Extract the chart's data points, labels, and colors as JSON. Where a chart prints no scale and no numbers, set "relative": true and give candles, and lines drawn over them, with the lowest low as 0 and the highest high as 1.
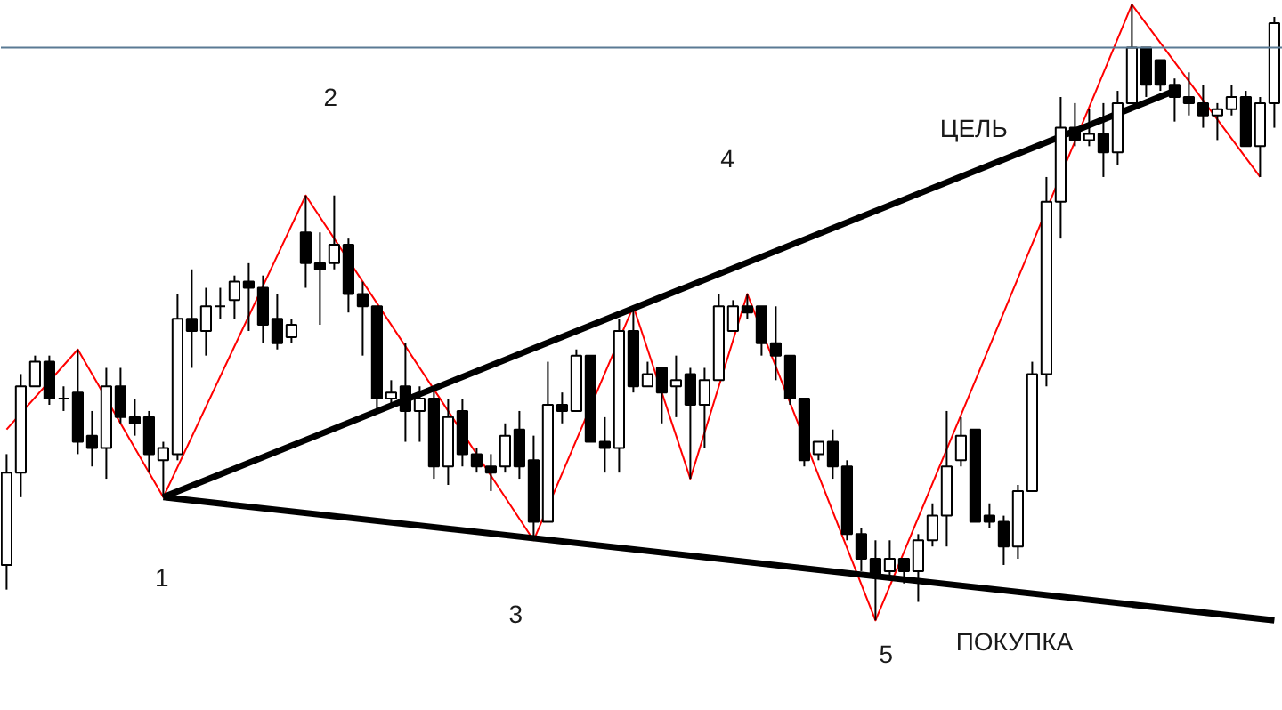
{
  "chart_data": {
    "type": "candlestick",
    "relative": true,
    "categories": [
      null,
      null,
      null,
      null,
      null,
      null,
      null,
      null,
      null,
      null,
      null,
      null,
      null,
      null,
      null,
      null,
      null,
      null,
      null,
      null,
      null,
      null,
      null,
      null,
      null,
      null,
      null,
      null,
      null,
      null,
      null,
      null,
      null,
      null,
      null,
      null,
      null,
      null,
      null,
      null,
      null,
      null,
      null,
      null,
      null,
      null,
      null,
      null,
      null,
      null,
      null,
      null,
      null,
      null,
      null,
      null,
      null,
      null,
      null,
      null,
      null,
      null,
      null,
      null,
      null,
      null,
      null,
      null,
      null,
      null,
      null,
      null,
      null,
      null,
      null,
      null,
      null,
      null,
      null,
      null,
      null,
      null,
      null,
      null,
      null,
      null,
      null,
      null,
      null,
      null
    ],
    "ohlc": [
      [
        0.09,
        0.27,
        0.05,
        0.24
      ],
      [
        0.24,
        0.4,
        0.2,
        0.38
      ],
      [
        0.38,
        0.43,
        0.38,
        0.42
      ],
      [
        0.42,
        0.43,
        0.35,
        0.36
      ],
      [
        0.36,
        0.38,
        0.34,
        0.36
      ],
      [
        0.37,
        0.44,
        0.27,
        0.29
      ],
      [
        0.3,
        0.34,
        0.25,
        0.28
      ],
      [
        0.28,
        0.41,
        0.23,
        0.38
      ],
      [
        0.38,
        0.41,
        0.32,
        0.33
      ],
      [
        0.33,
        0.36,
        0.3,
        0.32
      ],
      [
        0.33,
        0.34,
        0.24,
        0.27
      ],
      [
        0.26,
        0.29,
        0.2,
        0.28
      ],
      [
        0.27,
        0.53,
        0.26,
        0.49
      ],
      [
        0.49,
        0.57,
        0.41,
        0.47
      ],
      [
        0.47,
        0.54,
        0.43,
        0.51
      ],
      [
        0.51,
        0.54,
        0.49,
        0.51
      ],
      [
        0.52,
        0.56,
        0.49,
        0.55
      ],
      [
        0.55,
        0.58,
        0.47,
        0.54
      ],
      [
        0.54,
        0.56,
        0.45,
        0.48
      ],
      [
        0.49,
        0.53,
        0.44,
        0.45
      ],
      [
        0.46,
        0.49,
        0.45,
        0.48
      ],
      [
        0.63,
        0.69,
        0.54,
        0.58
      ],
      [
        0.58,
        0.63,
        0.48,
        0.57
      ],
      [
        0.58,
        0.69,
        0.57,
        0.61
      ],
      [
        0.61,
        0.62,
        0.5,
        0.53
      ],
      [
        0.53,
        0.55,
        0.43,
        0.51
      ],
      [
        0.51,
        0.51,
        0.34,
        0.36
      ],
      [
        0.36,
        0.39,
        0.35,
        0.37
      ],
      [
        0.38,
        0.45,
        0.29,
        0.34
      ],
      [
        0.34,
        0.38,
        0.29,
        0.36
      ],
      [
        0.36,
        0.38,
        0.23,
        0.25
      ],
      [
        0.25,
        0.36,
        0.22,
        0.33
      ],
      [
        0.34,
        0.36,
        0.25,
        0.27
      ],
      [
        0.27,
        0.28,
        0.24,
        0.25
      ],
      [
        0.25,
        0.27,
        0.21,
        0.24
      ],
      [
        0.25,
        0.32,
        0.24,
        0.3
      ],
      [
        0.31,
        0.34,
        0.23,
        0.25
      ],
      [
        0.26,
        0.3,
        0.13,
        0.16
      ],
      [
        0.16,
        0.42,
        0.16,
        0.35
      ],
      [
        0.35,
        0.37,
        0.32,
        0.34
      ],
      [
        0.34,
        0.44,
        0.34,
        0.43
      ],
      [
        0.43,
        0.43,
        0.29,
        0.29
      ],
      [
        0.29,
        0.33,
        0.24,
        0.28
      ],
      [
        0.28,
        0.49,
        0.24,
        0.47
      ],
      [
        0.47,
        0.51,
        0.37,
        0.38
      ],
      [
        0.38,
        0.42,
        0.38,
        0.4
      ],
      [
        0.41,
        0.41,
        0.32,
        0.37
      ],
      [
        0.38,
        0.43,
        0.33,
        0.39
      ],
      [
        0.4,
        0.41,
        0.23,
        0.35
      ],
      [
        0.35,
        0.41,
        0.28,
        0.39
      ],
      [
        0.39,
        0.53,
        0.39,
        0.51
      ],
      [
        0.47,
        0.52,
        0.47,
        0.51
      ],
      [
        0.51,
        0.53,
        0.49,
        0.5
      ],
      [
        0.51,
        0.51,
        0.43,
        0.45
      ],
      [
        0.45,
        0.51,
        0.39,
        0.43
      ],
      [
        0.43,
        0.43,
        0.35,
        0.36
      ],
      [
        0.36,
        0.36,
        0.25,
        0.26
      ],
      [
        0.27,
        0.29,
        0.26,
        0.29
      ],
      [
        0.29,
        0.31,
        0.23,
        0.25
      ],
      [
        0.25,
        0.26,
        0.13,
        0.14
      ],
      [
        0.14,
        0.15,
        0.08,
        0.1
      ],
      [
        0.1,
        0.13,
        0.0,
        0.07
      ],
      [
        0.08,
        0.13,
        0.07,
        0.1
      ],
      [
        0.1,
        0.1,
        0.06,
        0.08
      ],
      [
        0.08,
        0.14,
        0.03,
        0.13
      ],
      [
        0.13,
        0.19,
        0.12,
        0.17
      ],
      [
        0.17,
        0.34,
        0.12,
        0.25
      ],
      [
        0.26,
        0.33,
        0.25,
        0.3
      ],
      [
        0.31,
        0.31,
        0.16,
        0.16
      ],
      [
        0.17,
        0.19,
        0.15,
        0.16
      ],
      [
        0.16,
        0.17,
        0.09,
        0.12
      ],
      [
        0.12,
        0.22,
        0.1,
        0.21
      ],
      [
        0.21,
        0.42,
        0.21,
        0.4
      ],
      [
        0.4,
        0.72,
        0.38,
        0.68
      ],
      [
        0.68,
        0.85,
        0.62,
        0.8
      ],
      [
        0.8,
        0.84,
        0.77,
        0.78
      ],
      [
        0.78,
        0.83,
        0.77,
        0.79
      ],
      [
        0.79,
        0.84,
        0.72,
        0.76
      ],
      [
        0.76,
        0.86,
        0.74,
        0.84
      ],
      [
        0.84,
        1.0,
        0.84,
        0.93
      ],
      [
        0.93,
        0.93,
        0.85,
        0.87
      ],
      [
        0.91,
        0.91,
        0.86,
        0.87
      ],
      [
        0.87,
        0.88,
        0.81,
        0.85
      ],
      [
        0.85,
        0.89,
        0.82,
        0.84
      ],
      [
        0.84,
        0.87,
        0.8,
        0.82
      ],
      [
        0.82,
        0.84,
        0.78,
        0.83
      ],
      [
        0.83,
        0.87,
        0.82,
        0.85
      ],
      [
        0.85,
        0.86,
        0.77,
        0.77
      ],
      [
        0.77,
        0.85,
        0.72,
        0.84
      ],
      [
        0.84,
        0.98,
        0.8,
        0.97
      ]
    ],
    "series": [
      {
        "type": "line",
        "color": "#ff0000",
        "values": [
          0.31,
          null,
          null,
          null,
          null,
          0.44,
          null,
          null,
          null,
          null,
          null,
          0.2,
          null,
          null,
          null,
          null,
          null,
          null,
          null,
          null,
          null,
          0.69,
          null,
          null,
          null,
          null,
          null,
          null,
          null,
          null,
          null,
          null,
          null,
          null,
          null,
          null,
          null,
          0.13,
          null,
          null,
          null,
          null,
          null,
          null,
          0.51,
          null,
          null,
          null,
          0.23,
          null,
          null,
          null,
          0.53,
          null,
          null,
          null,
          null,
          null,
          null,
          null,
          null,
          0.0,
          null,
          null,
          null,
          null,
          null,
          null,
          null,
          null,
          null,
          null,
          null,
          null,
          null,
          null,
          null,
          null,
          null,
          1.0,
          null,
          null,
          null,
          null,
          null,
          null,
          null,
          null,
          0.72,
          null
        ]
      },
      {
        "type": "line",
        "color": "#000000",
        "values": [
          null,
          null,
          null,
          null,
          null,
          null,
          null,
          null,
          null,
          null,
          null,
          0.2,
          null,
          null,
          null,
          null,
          null,
          null,
          null,
          null,
          null,
          null,
          null,
          null,
          null,
          null,
          null,
          null,
          null,
          null,
          null,
          null,
          null,
          null,
          null,
          null,
          null,
          null,
          null,
          null,
          null,
          null,
          null,
          null,
          null,
          null,
          null,
          null,
          null,
          null,
          null,
          null,
          null,
          null,
          null,
          null,
          null,
          null,
          null,
          null,
          null,
          null,
          null,
          null,
          null,
          null,
          null,
          null,
          null,
          null,
          null,
          null,
          null,
          null,
          null,
          null,
          null,
          null,
          null,
          null,
          null,
          null,
          0.86,
          null,
          null,
          null,
          null,
          null,
          null,
          null
        ]
      },
      {
        "type": "line",
        "color": "#000000",
        "values": [
          null,
          null,
          null,
          null,
          null,
          null,
          null,
          null,
          null,
          null,
          null,
          0.2,
          null,
          null,
          null,
          null,
          null,
          null,
          null,
          null,
          null,
          null,
          null,
          null,
          null,
          null,
          null,
          null,
          null,
          null,
          null,
          null,
          null,
          null,
          null,
          null,
          null,
          null,
          null,
          null,
          null,
          null,
          null,
          null,
          null,
          null,
          null,
          null,
          null,
          null,
          null,
          null,
          null,
          null,
          null,
          null,
          null,
          null,
          null,
          null,
          null,
          null,
          null,
          null,
          null,
          null,
          null,
          null,
          null,
          null,
          null,
          null,
          null,
          null,
          null,
          null,
          null,
          null,
          null,
          null,
          null,
          null,
          null,
          null,
          null,
          null,
          null,
          null,
          null,
          0.0
        ]
      }
    ],
    "ref_lines": [
      {
        "axis": "y",
        "value": 0.93,
        "color": "#5a7a94"
      }
    ],
    "annotations": [
      "1",
      "2",
      "3",
      "4",
      "5",
      "ЦЕЛЬ",
      "ПОКУПКА"
    ]
  }
}
